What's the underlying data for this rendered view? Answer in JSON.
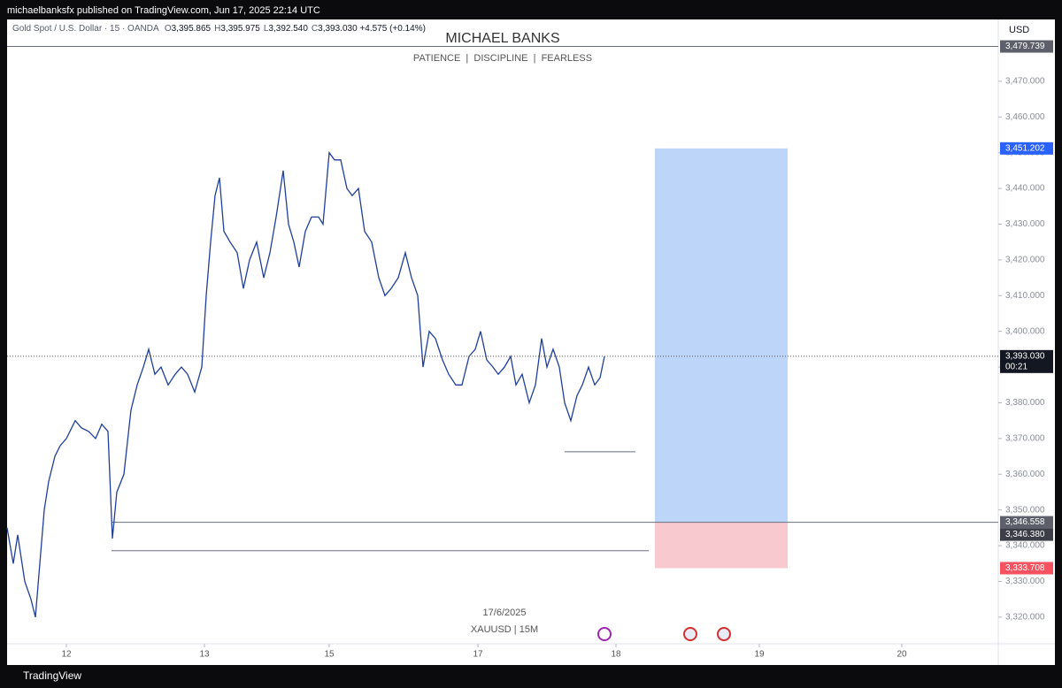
{
  "header": {
    "publisher": "michaelbanksfx published on TradingView.com, Jun 17, 2025 22:14 UTC",
    "footer": "TradingView"
  },
  "chart_data": {
    "type": "line",
    "symbol": "Gold Spot / U.S. Dollar · 15 · OANDA",
    "ohlc": [
      {
        "key": "O",
        "value": "3,395.865"
      },
      {
        "key": "H",
        "value": "3,395.975"
      },
      {
        "key": "L",
        "value": "3,392.540"
      },
      {
        "key": "C",
        "value": "3,393.030"
      }
    ],
    "change": "+4.575 (+0.14%)",
    "title": "MICHAEL BANKS",
    "subtitle": "PATIENCE  |  DISCIPLINE  |  FEARLESS",
    "date_label": "17/6/2025",
    "interval_label": "XAUUSD | 15M",
    "currency": "USD",
    "series": [
      {
        "name": "XAUUSD",
        "color": "#1f3f99",
        "x": [
          0,
          7,
          12,
          20,
          27,
          32,
          37,
          42,
          47,
          54,
          60,
          67,
          77,
          84,
          92,
          100,
          107,
          114,
          119,
          124,
          132,
          140,
          147,
          154,
          160,
          167,
          174,
          182,
          190,
          197,
          204,
          212,
          220,
          225,
          230,
          235,
          240,
          245,
          252,
          260,
          267,
          274,
          282,
          290,
          297,
          304,
          312,
          318,
          324,
          330,
          337,
          344,
          352,
          357,
          364,
          370,
          377,
          384,
          390,
          397,
          404,
          412,
          420,
          427,
          434,
          442,
          450,
          457,
          464,
          470,
          477,
          484,
          492,
          499,
          507,
          514,
          522,
          529,
          535,
          542,
          549,
          555,
          562,
          569,
          575,
          582,
          590,
          597,
          604,
          610,
          617,
          624,
          630,
          637,
          644,
          650,
          657,
          664,
          670,
          675
        ],
        "values": [
          3345,
          3335,
          3343,
          3330,
          3325,
          3320,
          3335,
          3350,
          3358,
          3365,
          3368,
          3370,
          3375,
          3373,
          3372,
          3370,
          3374,
          3372,
          3342,
          3355,
          3360,
          3378,
          3385,
          3390,
          3395,
          3388,
          3390,
          3385,
          3388,
          3390,
          3388,
          3383,
          3390,
          3410,
          3425,
          3438,
          3443,
          3428,
          3425,
          3422,
          3412,
          3420,
          3425,
          3415,
          3422,
          3432,
          3445,
          3430,
          3425,
          3418,
          3428,
          3432,
          3432,
          3430,
          3450,
          3448,
          3448,
          3440,
          3438,
          3440,
          3428,
          3425,
          3415,
          3410,
          3412,
          3415,
          3422,
          3415,
          3410,
          3390,
          3400,
          3398,
          3392,
          3388,
          3385,
          3385,
          3393,
          3395,
          3400,
          3392,
          3390,
          3388,
          3390,
          3393,
          3385,
          3388,
          3380,
          3385,
          3398,
          3390,
          3395,
          3390,
          3380,
          3375,
          3382,
          3385,
          3390,
          3385,
          3387,
          3393
        ]
      }
    ],
    "xlim": [
      0,
      1120
    ],
    "xticks": [
      {
        "value": 67,
        "label": "12"
      },
      {
        "value": 223,
        "label": "13"
      },
      {
        "value": 364,
        "label": "15"
      },
      {
        "value": 532,
        "label": "17"
      },
      {
        "value": 688,
        "label": "18"
      },
      {
        "value": 850,
        "label": "19"
      },
      {
        "value": 1011,
        "label": "20"
      }
    ],
    "ylim": [
      3306.6,
      3487.3
    ],
    "yticks": [
      {
        "value": 3320,
        "label": "3,320.000"
      },
      {
        "value": 3330,
        "label": "3,330.000"
      },
      {
        "value": 3340,
        "label": "3,340.000"
      },
      {
        "value": 3350,
        "label": "3,350.000"
      },
      {
        "value": 3360,
        "label": "3,360.000"
      },
      {
        "value": 3370,
        "label": "3,370.000"
      },
      {
        "value": 3380,
        "label": "3,380.000"
      },
      {
        "value": 3390,
        "label": "3,390.000"
      },
      {
        "value": 3400,
        "label": "3,400.000"
      },
      {
        "value": 3410,
        "label": "3,410.000"
      },
      {
        "value": 3420,
        "label": "3,420.000"
      },
      {
        "value": 3430,
        "label": "3,430.000"
      },
      {
        "value": 3440,
        "label": "3,440.000"
      },
      {
        "value": 3450,
        "label": "3,450.000"
      },
      {
        "value": 3460,
        "label": "3,460.000"
      },
      {
        "value": 3470,
        "label": "3,470.000"
      }
    ],
    "position": {
      "entry": 3346.558,
      "target": 3451.202,
      "stop": 3333.708,
      "x": [
        732,
        882
      ],
      "profit_color": "#bcd5f8",
      "loss_color": "#f9c9d0"
    },
    "levels": [
      {
        "value": 3479.739,
        "x": [
          0,
          1120
        ]
      },
      {
        "value": 3346.558,
        "x": [
          118,
          1120
        ]
      },
      {
        "value": 3338.6,
        "x": [
          118,
          725
        ]
      },
      {
        "value": 3366.3,
        "x": [
          630,
          710
        ]
      }
    ],
    "price_labels": [
      {
        "value": 3479.739,
        "label": "3,479.739",
        "color": "#5d606b"
      },
      {
        "value": 3451.202,
        "label": "3,451.202",
        "color": "#2962ff"
      },
      {
        "value": 3393.03,
        "label": "3,393.030",
        "color": "#131722",
        "sub": "00:21",
        "last": true
      },
      {
        "value": 3346.558,
        "label": "3,346.558",
        "color": "#5d606b"
      },
      {
        "value": 3346.38,
        "label": "3,346.380",
        "color": "#3b3e47"
      },
      {
        "value": 3333.708,
        "label": "3,333.708",
        "color": "#f7525f"
      }
    ]
  }
}
